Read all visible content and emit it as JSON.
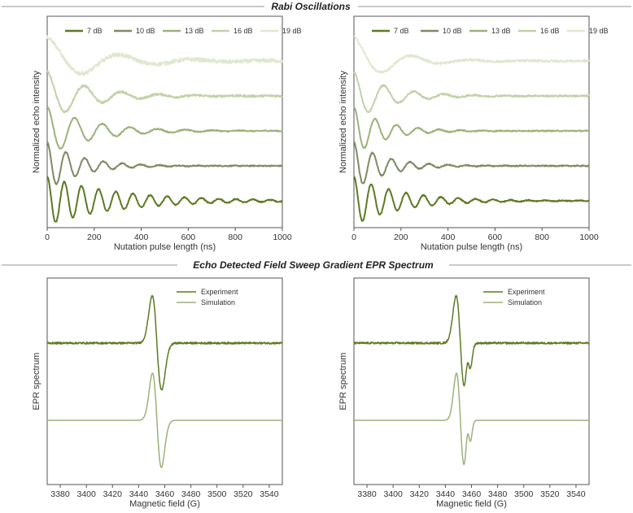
{
  "sections": {
    "rabi_title": "Rabi Oscillations",
    "epr_title": "Echo Detected Field Sweep Gradient EPR Spectrum"
  },
  "colors": {
    "c7": "#5c7a22",
    "c10": "#7d8a62",
    "c13": "#9bb27a",
    "c16": "#c2d2a8",
    "c19": "#dfe8cf",
    "experiment": "#5c7a22",
    "simulation": "#9bb27a",
    "axis": "#555555",
    "divider": "#aaaaaa"
  },
  "chart_data": [
    {
      "type": "line",
      "title": "Rabi Oscillations (left)",
      "xlabel": "Nutation pulse length (ns)",
      "ylabel": "Normalized echo intensity",
      "xlim": [
        0,
        1000
      ],
      "xticks": [
        "0",
        "200",
        "400",
        "600",
        "800",
        "1000"
      ],
      "legend_position": "top",
      "series": [
        {
          "name": "7 dB",
          "offset": 0,
          "freq_per_ns": 0.0137,
          "decay_ns": 300,
          "amplitude": 0.9,
          "noise": 0.02
        },
        {
          "name": "10 dB",
          "offset": 1,
          "freq_per_ns": 0.0125,
          "decay_ns": 140,
          "amplitude": 0.9,
          "noise": 0.02
        },
        {
          "name": "13 dB",
          "offset": 2,
          "freq_per_ns": 0.0085,
          "decay_ns": 190,
          "amplitude": 0.9,
          "noise": 0.02
        },
        {
          "name": "16 dB",
          "offset": 3,
          "freq_per_ns": 0.0063,
          "decay_ns": 180,
          "amplitude": 0.9,
          "noise": 0.04
        },
        {
          "name": "19 dB",
          "offset": 4,
          "freq_per_ns": 0.0032,
          "decay_ns": 230,
          "amplitude": 0.9,
          "noise": 0.07
        }
      ]
    },
    {
      "type": "line",
      "title": "Rabi Oscillations (right)",
      "xlabel": "Nutation pulse length (ns)",
      "ylabel": "Normalized echo intensity",
      "xlim": [
        0,
        1000
      ],
      "xticks": [
        "0",
        "200",
        "400",
        "600",
        "800",
        "1000"
      ],
      "legend_position": "top",
      "series": [
        {
          "name": "7 dB",
          "offset": 0,
          "freq_per_ns": 0.0135,
          "decay_ns": 200,
          "amplitude": 0.9,
          "noise": 0.02
        },
        {
          "name": "10 dB",
          "offset": 1,
          "freq_per_ns": 0.0125,
          "decay_ns": 130,
          "amplitude": 0.9,
          "noise": 0.02
        },
        {
          "name": "13 dB",
          "offset": 2,
          "freq_per_ns": 0.011,
          "decay_ns": 130,
          "amplitude": 0.9,
          "noise": 0.02
        },
        {
          "name": "16 dB",
          "offset": 3,
          "freq_per_ns": 0.0078,
          "decay_ns": 150,
          "amplitude": 0.9,
          "noise": 0.03
        },
        {
          "name": "19 dB",
          "offset": 4,
          "freq_per_ns": 0.004,
          "decay_ns": 160,
          "amplitude": 0.9,
          "noise": 0.04
        }
      ]
    },
    {
      "type": "line",
      "title": "EPR Spectrum (left)",
      "xlabel": "Magnetic field (G)",
      "ylabel": "EPR spectrum",
      "xlim": [
        3370,
        3550
      ],
      "xticks": [
        "3380",
        "3400",
        "3420",
        "3440",
        "3460",
        "3480",
        "3500",
        "3520",
        "3540"
      ],
      "legend_position": "top-right",
      "series": [
        {
          "name": "Experiment",
          "baseline": 1.0,
          "peaks": [
            {
              "center_G": 3454,
              "width_G": 3.6,
              "amplitude": 1.0
            }
          ],
          "noise": 0.02
        },
        {
          "name": "Simulation",
          "baseline": 0.0,
          "peaks": [
            {
              "center_G": 3454,
              "width_G": 3.4,
              "amplitude": 1.0
            }
          ],
          "noise": 0
        }
      ]
    },
    {
      "type": "line",
      "title": "EPR Spectrum (right)",
      "xlabel": "Magnetic field (G)",
      "ylabel": "EPR spectrum",
      "xlim": [
        3370,
        3550
      ],
      "xticks": [
        "3380",
        "3400",
        "3420",
        "3440",
        "3460",
        "3480",
        "3500",
        "3520",
        "3540"
      ],
      "legend_position": "top-right",
      "series": [
        {
          "name": "Experiment",
          "baseline": 1.0,
          "peaks": [
            {
              "center_G": 3451.5,
              "width_G": 3.3,
              "amplitude": 1.0
            },
            {
              "center_G": 3458,
              "width_G": 1.6,
              "amplitude": 0.3
            }
          ],
          "noise": 0.02
        },
        {
          "name": "Simulation",
          "baseline": 0.0,
          "peaks": [
            {
              "center_G": 3451.5,
              "width_G": 3.0,
              "amplitude": 1.0
            },
            {
              "center_G": 3458,
              "width_G": 1.5,
              "amplitude": 0.3
            }
          ],
          "noise": 0
        }
      ]
    }
  ]
}
